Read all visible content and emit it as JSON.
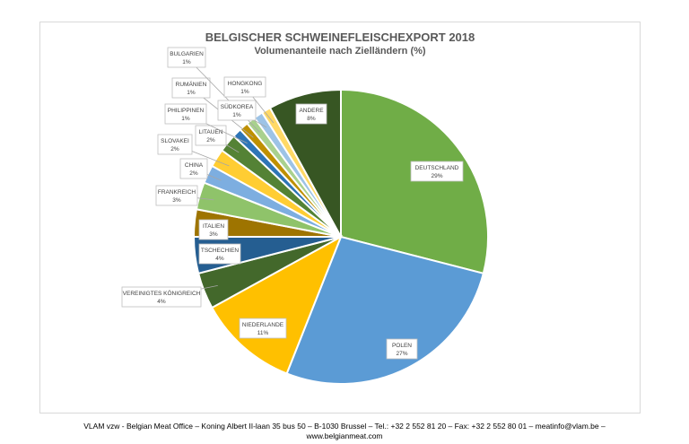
{
  "chart_data": {
    "type": "pie",
    "title": "BELGISCHER SCHWEINEFLEISCHEXPORT 2018",
    "subtitle": "Volumenanteile nach Zielländern (%)",
    "unit": "%",
    "slices": [
      {
        "label": "DEUTSCHLAND",
        "value": 29,
        "value_label": "29%",
        "color": "#70ad47"
      },
      {
        "label": "POLEN",
        "value": 27,
        "value_label": "27%",
        "color": "#5b9bd5"
      },
      {
        "label": "NIEDERLANDE",
        "value": 11,
        "value_label": "11%",
        "color": "#ffc000"
      },
      {
        "label": "VEREINIGTES KÖNIGREICH",
        "value": 4,
        "value_label": "4%",
        "color": "#43682b"
      },
      {
        "label": "TSCHECHIEN",
        "value": 4,
        "value_label": "4%",
        "color": "#255e91"
      },
      {
        "label": "ITALIEN",
        "value": 3,
        "value_label": "3%",
        "color": "#9e7400"
      },
      {
        "label": "FRANKREICH",
        "value": 3,
        "value_label": "3%",
        "color": "#8fc36a"
      },
      {
        "label": "CHINA",
        "value": 2,
        "value_label": "2%",
        "color": "#7daee0"
      },
      {
        "label": "SLOVAKEI",
        "value": 2,
        "value_label": "2%",
        "color": "#ffcd33"
      },
      {
        "label": "LITAUEN",
        "value": 2,
        "value_label": "2%",
        "color": "#548235"
      },
      {
        "label": "PHILIPPINEN",
        "value": 1,
        "value_label": "1%",
        "color": "#2e75b6"
      },
      {
        "label": "RUMÄNIEN",
        "value": 1,
        "value_label": "1%",
        "color": "#bf9000"
      },
      {
        "label": "BULGARIEN",
        "value": 1,
        "value_label": "1%",
        "color": "#a9d18e"
      },
      {
        "label": "SÜDKOREA",
        "value": 1,
        "value_label": "1%",
        "color": "#9dc3e6"
      },
      {
        "label": "HONGKONG",
        "value": 1,
        "value_label": "1%",
        "color": "#ffd966"
      },
      {
        "label": "ANDERE",
        "value": 8,
        "value_label": "8%",
        "color": "#375623"
      }
    ]
  },
  "footer": {
    "line1": "VLAM vzw - Belgian Meat Office – Koning Albert II-laan 35 bus 50 – B-1030 Brussel – Tel.: +32 2 552 81 20 – Fax: +32 2 552 80 01 – meatinfo@vlam.be –",
    "line2": "www.belgianmeat.com"
  }
}
